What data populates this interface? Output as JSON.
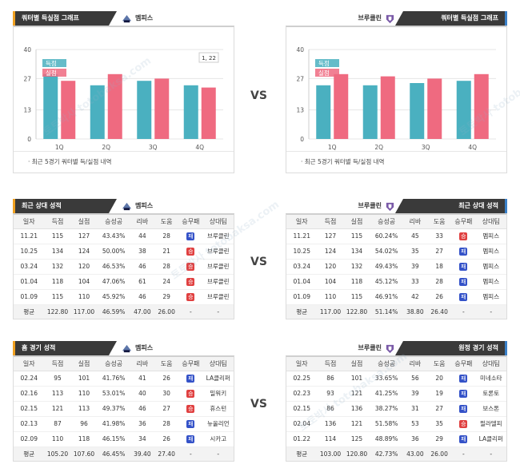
{
  "vs_label": "VS",
  "watermark": "토토박사 totobaksa.com",
  "teams": {
    "home": "멤피스",
    "away": "브루클린"
  },
  "colors": {
    "scored": "#4ab0c0",
    "conceded": "#ef6a80",
    "tab_bg": "#3a3a3a",
    "accent_left": "#f0a020",
    "accent_right": "#3a80c8",
    "win": "#3452c8",
    "loss": "#e04040"
  },
  "quarter_section": {
    "left_title": "쿼터별 득실점 그래프",
    "right_title": "쿼터별 득실점 그래프",
    "note": "최근 5경기 쿼터별 득/실점 내역",
    "legend": {
      "scored": "득점",
      "conceded": "실점"
    },
    "tooltip": "1, 22"
  },
  "chart_data": [
    {
      "type": "bar",
      "team": "멤피스",
      "categories": [
        "1Q",
        "2Q",
        "3Q",
        "4Q"
      ],
      "series": [
        {
          "name": "득점",
          "values": [
            29,
            24,
            26,
            24
          ]
        },
        {
          "name": "실점",
          "values": [
            26,
            29,
            27,
            23
          ]
        }
      ],
      "yticks": [
        0,
        13,
        27,
        40
      ],
      "ylim": [
        0,
        40
      ]
    },
    {
      "type": "bar",
      "team": "브루클린",
      "categories": [
        "1Q",
        "2Q",
        "3Q",
        "4Q"
      ],
      "series": [
        {
          "name": "득점",
          "values": [
            24,
            24,
            25,
            26
          ]
        },
        {
          "name": "실점",
          "values": [
            29,
            28,
            27,
            29
          ]
        }
      ],
      "yticks": [
        0,
        13,
        27,
        40
      ],
      "ylim": [
        0,
        40
      ]
    }
  ],
  "recent": {
    "left_title": "최근 상대 성적",
    "right_title": "최근 상대 성적",
    "left_columns": [
      "일자",
      "득점",
      "실점",
      "승성공",
      "리바",
      "도움",
      "승무패",
      "상대팀"
    ],
    "right_columns": [
      "일자",
      "득점",
      "실점",
      "승성공",
      "리바",
      "도움",
      "승무패",
      "상대팀"
    ],
    "left_rows": [
      [
        "11.21",
        "115",
        "127",
        "43.43%",
        "44",
        "28",
        "패",
        "브루클린"
      ],
      [
        "10.25",
        "134",
        "124",
        "50.00%",
        "38",
        "21",
        "승",
        "브루클린"
      ],
      [
        "03.24",
        "132",
        "120",
        "46.53%",
        "46",
        "28",
        "승",
        "브루클린"
      ],
      [
        "01.04",
        "118",
        "104",
        "47.06%",
        "61",
        "24",
        "승",
        "브루클린"
      ],
      [
        "01.09",
        "115",
        "110",
        "45.92%",
        "46",
        "29",
        "승",
        "브루클린"
      ]
    ],
    "left_avg": [
      "평균",
      "122.80",
      "117.00",
      "46.59%",
      "47.00",
      "26.00",
      "-",
      "-"
    ],
    "right_rows": [
      [
        "11.21",
        "127",
        "115",
        "60.24%",
        "45",
        "33",
        "승",
        "멤피스"
      ],
      [
        "10.25",
        "124",
        "134",
        "54.02%",
        "35",
        "27",
        "패",
        "멤피스"
      ],
      [
        "03.24",
        "120",
        "132",
        "49.43%",
        "39",
        "18",
        "패",
        "멤피스"
      ],
      [
        "01.04",
        "104",
        "118",
        "45.12%",
        "33",
        "28",
        "패",
        "멤피스"
      ],
      [
        "01.09",
        "110",
        "115",
        "46.91%",
        "42",
        "26",
        "패",
        "멤피스"
      ]
    ],
    "right_avg": [
      "평균",
      "117.00",
      "122.80",
      "51.14%",
      "38.80",
      "26.40",
      "-",
      "-"
    ]
  },
  "venue": {
    "left_title": "홈 경기 성적",
    "right_title": "원정 경기 성적",
    "left_rows": [
      [
        "02.24",
        "95",
        "101",
        "41.76%",
        "41",
        "26",
        "패",
        "LA클리퍼"
      ],
      [
        "02.16",
        "113",
        "110",
        "53.01%",
        "40",
        "30",
        "승",
        "밀워키"
      ],
      [
        "02.15",
        "121",
        "113",
        "49.37%",
        "46",
        "27",
        "승",
        "휴스턴"
      ],
      [
        "02.13",
        "87",
        "96",
        "41.98%",
        "36",
        "28",
        "패",
        "뉴올리언"
      ],
      [
        "02.09",
        "110",
        "118",
        "46.15%",
        "34",
        "26",
        "패",
        "시카고"
      ]
    ],
    "left_avg": [
      "평균",
      "105.20",
      "107.60",
      "46.45%",
      "39.40",
      "27.40",
      "-",
      "-"
    ],
    "right_rows": [
      [
        "02.25",
        "86",
        "101",
        "33.65%",
        "56",
        "20",
        "패",
        "미네소타"
      ],
      [
        "02.23",
        "93",
        "121",
        "41.25%",
        "39",
        "19",
        "패",
        "토론토"
      ],
      [
        "02.15",
        "86",
        "136",
        "38.27%",
        "31",
        "27",
        "패",
        "보스톤"
      ],
      [
        "02.04",
        "136",
        "121",
        "51.58%",
        "53",
        "35",
        "승",
        "필라델피"
      ],
      [
        "01.22",
        "114",
        "125",
        "48.89%",
        "36",
        "29",
        "패",
        "LA클리퍼"
      ]
    ],
    "right_avg": [
      "평균",
      "103.00",
      "120.80",
      "42.73%",
      "43.00",
      "26.00",
      "-",
      "-"
    ]
  }
}
